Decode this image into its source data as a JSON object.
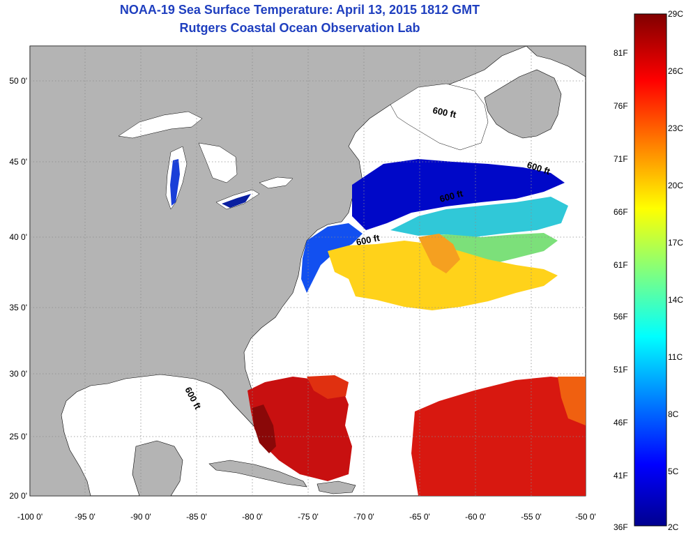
{
  "title": {
    "line1": "NOAA-19 Sea Surface Temperature:  April 13, 2015 1812 GMT",
    "line2": "Rutgers Coastal Ocean Observation Lab"
  },
  "map": {
    "lon_ticks": [
      "-100 0'",
      "-95 0'",
      "-90 0'",
      "-85 0'",
      "-80 0'",
      "-75 0'",
      "-70 0'",
      "-65 0'",
      "-60 0'",
      "-55 0'",
      "-50 0'"
    ],
    "lat_ticks": [
      "20 0'",
      "25 0'",
      "30 0'",
      "35 0'",
      "40 0'",
      "45 0'",
      "50 0'"
    ],
    "contour_label": "600 ft",
    "colors": {
      "land": "#b4b4b4",
      "ocean_nodata": "#ffffff",
      "grid": "#8a8a8a"
    }
  },
  "colorbar": {
    "celsius": [
      "29C",
      "26C",
      "23C",
      "20C",
      "17C",
      "14C",
      "11C",
      "8C",
      "5C",
      "2C"
    ],
    "fahrenheit": [
      "81F",
      "76F",
      "71F",
      "66F",
      "61F",
      "56F",
      "51F",
      "46F",
      "41F",
      "36F"
    ],
    "range_c": [
      2,
      29
    ],
    "colormap": "jet"
  }
}
